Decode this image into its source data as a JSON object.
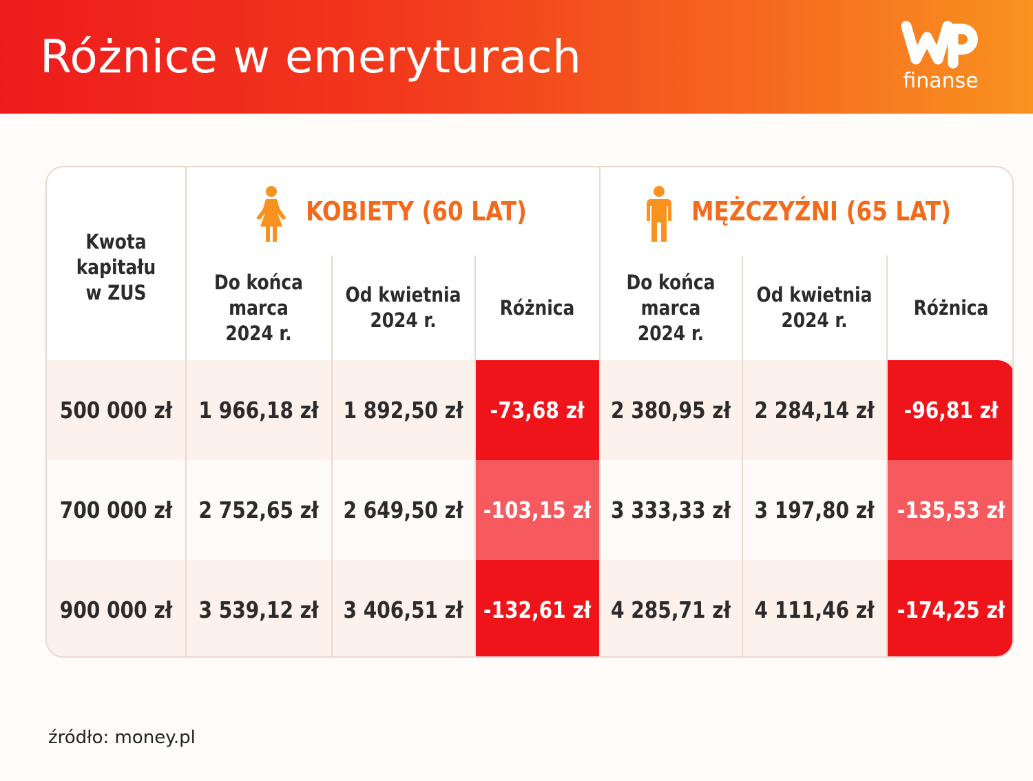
{
  "header": {
    "title": "Różnice w emeryturach",
    "logo_text": "finanse"
  },
  "table": {
    "corner_label": "Kwota kapitału w ZUS",
    "groups": [
      {
        "label": "KOBIETY (60 LAT)",
        "icon": "woman-icon"
      },
      {
        "label": "MĘŻCZYŹNI (65 LAT)",
        "icon": "man-icon"
      }
    ],
    "columns": {
      "before": "Do końca marca 2024 r.",
      "after": "Od kwietnia 2024 r.",
      "diff": "Różnica"
    },
    "rows": [
      {
        "capital": "500 000 zł",
        "women_before": "1 966,18 zł",
        "women_after": "1 892,50 zł",
        "women_diff": "-73,68 zł",
        "men_before": "2 380,95 zł",
        "men_after": "2 284,14 zł",
        "men_diff": "-96,81 zł"
      },
      {
        "capital": "700 000 zł",
        "women_before": "2 752,65 zł",
        "women_after": "2 649,50 zł",
        "women_diff": "-103,15 zł",
        "men_before": "3 333,33 zł",
        "men_after": "3 197,80 zł",
        "men_diff": "-135,53 zł"
      },
      {
        "capital": "900 000 zł",
        "women_before": "3 539,12 zł",
        "women_after": "3 406,51 zł",
        "women_diff": "-132,61 zł",
        "men_before": "4 285,71 zł",
        "men_after": "4 111,46 zł",
        "men_diff": "-174,25 zł"
      }
    ]
  },
  "colors": {
    "accent_orange": "#f26a1b",
    "diff_red": "#ef141a",
    "diff_pink": "#f6595e"
  },
  "source": "źródło: money.pl"
}
